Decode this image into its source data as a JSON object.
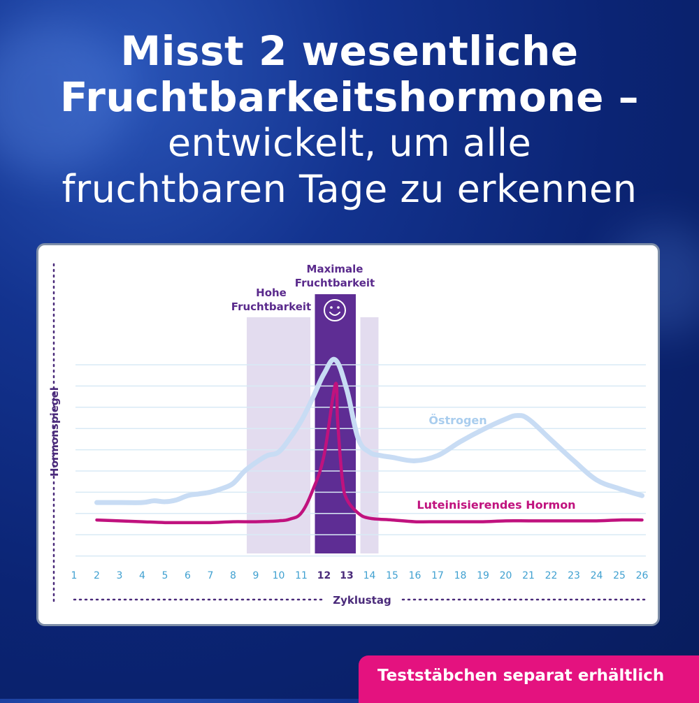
{
  "headline": {
    "line1": "Misst 2 wesentliche",
    "line2": "Fruchtbarkeitshormone –",
    "line3": "entwickelt, um alle",
    "line4": "fruchtbaren Tage zu erkennen"
  },
  "badge": {
    "label": "Teststäbchen separat erhältlich"
  },
  "chart_data": {
    "type": "line",
    "xlabel": "Zyklustag",
    "ylabel": "Hormonspiegel",
    "x": [
      1,
      2,
      3,
      4,
      5,
      6,
      7,
      8,
      9,
      10,
      11,
      12,
      13,
      14,
      15,
      16,
      17,
      18,
      19,
      20,
      21,
      22,
      23,
      24,
      25,
      26
    ],
    "highlight_days": [
      12,
      13
    ],
    "xlim": [
      1,
      26
    ],
    "ylim": [
      0,
      10
    ],
    "grid": true,
    "series": [
      {
        "name": "Östrogen",
        "color": "#c8dcf4",
        "points": [
          [
            2,
            1.8
          ],
          [
            3,
            1.8
          ],
          [
            4,
            1.8
          ],
          [
            4.5,
            1.9
          ],
          [
            5,
            1.85
          ],
          [
            5.5,
            1.95
          ],
          [
            6,
            2.2
          ],
          [
            6.5,
            2.3
          ],
          [
            7,
            2.4
          ],
          [
            7.5,
            2.6
          ],
          [
            8,
            2.9
          ],
          [
            8.5,
            3.6
          ],
          [
            9,
            4.1
          ],
          [
            9.5,
            4.5
          ],
          [
            10,
            4.7
          ],
          [
            10.5,
            5.5
          ],
          [
            11,
            6.5
          ],
          [
            11.5,
            7.8
          ],
          [
            12,
            9.2
          ],
          [
            12.5,
            10.0
          ],
          [
            13,
            8.3
          ],
          [
            13.5,
            5.5
          ],
          [
            14,
            4.7
          ],
          [
            14.5,
            4.5
          ],
          [
            15,
            4.4
          ],
          [
            16,
            4.2
          ],
          [
            17,
            4.5
          ],
          [
            18,
            5.3
          ],
          [
            19,
            6.0
          ],
          [
            20,
            6.6
          ],
          [
            20.5,
            6.8
          ],
          [
            21,
            6.6
          ],
          [
            22,
            5.4
          ],
          [
            23,
            4.2
          ],
          [
            24,
            3.1
          ],
          [
            25,
            2.6
          ],
          [
            26,
            2.2
          ]
        ]
      },
      {
        "name": "Luteinisierendes Hormon",
        "color": "#c0127e",
        "points": [
          [
            2,
            0.8
          ],
          [
            3,
            0.75
          ],
          [
            4,
            0.7
          ],
          [
            5,
            0.65
          ],
          [
            6,
            0.65
          ],
          [
            7,
            0.65
          ],
          [
            8,
            0.7
          ],
          [
            9,
            0.7
          ],
          [
            10,
            0.75
          ],
          [
            10.5,
            0.85
          ],
          [
            11,
            1.2
          ],
          [
            11.5,
            2.5
          ],
          [
            12,
            4.5
          ],
          [
            12.5,
            8.6
          ],
          [
            12.6,
            6.5
          ],
          [
            12.8,
            3.2
          ],
          [
            13,
            2.0
          ],
          [
            13.5,
            1.2
          ],
          [
            14,
            0.9
          ],
          [
            15,
            0.8
          ],
          [
            16,
            0.7
          ],
          [
            17,
            0.7
          ],
          [
            18,
            0.7
          ],
          [
            19,
            0.7
          ],
          [
            20,
            0.75
          ],
          [
            21,
            0.75
          ],
          [
            22,
            0.75
          ],
          [
            23,
            0.75
          ],
          [
            24,
            0.75
          ],
          [
            25,
            0.8
          ],
          [
            26,
            0.8
          ]
        ]
      }
    ],
    "annotations": {
      "high_fertility": "Hohe\nFruchtbarkeit",
      "peak_fertility": "Maximale\nFruchtbarkeit",
      "smiley": "☺"
    },
    "colors": {
      "high_band": "#e3dcef",
      "peak_band": "#5e2d94",
      "label_purple": "#5a2a8c",
      "tick_blue": "#3fa0d0",
      "tick_bold": "#4a2a7a",
      "grid": "#d8eaf5"
    }
  }
}
